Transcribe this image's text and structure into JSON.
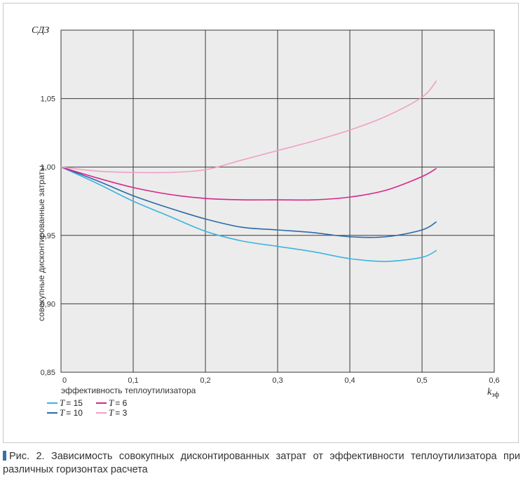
{
  "chart_data": {
    "type": "line",
    "ylabel_top": "СДЗ",
    "ylabel_side": "совокупные дисконтированные затраты",
    "xlabel_text": "эффективность теплоутилизатора",
    "xlabel_symbol": "k",
    "xlabel_subscript": "эф",
    "xlim": [
      0,
      0.6
    ],
    "ylim": [
      0.85,
      1.1
    ],
    "x_ticks": [
      "0",
      "0,1",
      "0,2",
      "0,3",
      "0,4",
      "0,5",
      "0,6"
    ],
    "y_ticks": [
      "0,85",
      "0,90",
      "0,95",
      "1,00",
      "1,05"
    ],
    "grid": true,
    "series": [
      {
        "name": "T = 15",
        "color": "#3cb4e0",
        "x": [
          0,
          0.05,
          0.1,
          0.15,
          0.2,
          0.25,
          0.3,
          0.35,
          0.4,
          0.45,
          0.5,
          0.52
        ],
        "y": [
          1.0,
          0.988,
          0.975,
          0.964,
          0.953,
          0.946,
          0.942,
          0.938,
          0.933,
          0.931,
          0.934,
          0.939
        ]
      },
      {
        "name": "T = 10",
        "color": "#2b6aa8",
        "x": [
          0,
          0.05,
          0.1,
          0.15,
          0.2,
          0.25,
          0.3,
          0.35,
          0.4,
          0.45,
          0.5,
          0.52
        ],
        "y": [
          1.0,
          0.99,
          0.979,
          0.97,
          0.962,
          0.956,
          0.954,
          0.952,
          0.949,
          0.949,
          0.954,
          0.96
        ]
      },
      {
        "name": "T = 6",
        "color": "#d6268c",
        "x": [
          0,
          0.05,
          0.1,
          0.15,
          0.2,
          0.25,
          0.3,
          0.35,
          0.4,
          0.45,
          0.5,
          0.52
        ],
        "y": [
          1.0,
          0.992,
          0.985,
          0.98,
          0.977,
          0.976,
          0.976,
          0.976,
          0.978,
          0.983,
          0.993,
          0.999
        ]
      },
      {
        "name": "T = 3",
        "color": "#f0a0c6",
        "x": [
          0,
          0.05,
          0.1,
          0.15,
          0.2,
          0.25,
          0.3,
          0.35,
          0.4,
          0.45,
          0.5,
          0.52
        ],
        "y": [
          1.0,
          0.997,
          0.996,
          0.996,
          0.998,
          1.005,
          1.012,
          1.019,
          1.027,
          1.037,
          1.051,
          1.063
        ]
      }
    ],
    "legend": [
      {
        "symbol": "T",
        "value": "= 15",
        "color": "#3cb4e0"
      },
      {
        "symbol": "T",
        "value": "= 6",
        "color": "#d6268c"
      },
      {
        "symbol": "T",
        "value": "= 10",
        "color": "#2b6aa8"
      },
      {
        "symbol": "T",
        "value": "= 3",
        "color": "#f0a0c6"
      }
    ],
    "legend_position": "bottom-left"
  },
  "caption": "Рис. 2. Зависимость совокупных дисконтированных затрат от эффективности теплоутилизатора при различных горизонтах расчета",
  "colors": {
    "plot_background": "#ececec",
    "grid": "#3a3a3a",
    "caption_marker": "#3a6fa3"
  }
}
